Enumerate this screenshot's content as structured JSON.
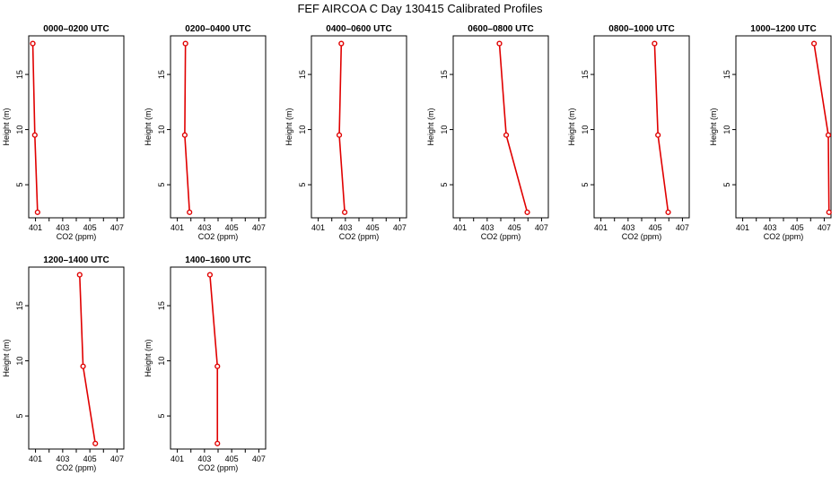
{
  "page": {
    "title": "FEF AIRCOA C  Day 130415  Calibrated Profiles"
  },
  "chart_data": [
    {
      "type": "line",
      "title": "0000–0200 UTC",
      "xlabel": "CO2 (ppm)",
      "ylabel": "Height (m)",
      "xlim": [
        400.5,
        407.5
      ],
      "ylim": [
        2.0,
        18.5
      ],
      "xticks": [
        401,
        403,
        405,
        407
      ],
      "yticks": [
        5,
        10,
        15
      ],
      "x": [
        400.8,
        400.95,
        401.15
      ],
      "y": [
        17.8,
        9.5,
        2.5
      ],
      "color": "#e00000"
    },
    {
      "type": "line",
      "title": "0200–0400 UTC",
      "xlabel": "CO2 (ppm)",
      "ylabel": "Height (m)",
      "xlim": [
        400.5,
        407.5
      ],
      "ylim": [
        2.0,
        18.5
      ],
      "xticks": [
        401,
        403,
        405,
        407
      ],
      "yticks": [
        5,
        10,
        15
      ],
      "x": [
        401.6,
        401.55,
        401.9
      ],
      "y": [
        17.8,
        9.5,
        2.5
      ],
      "color": "#e00000"
    },
    {
      "type": "line",
      "title": "0400–0600 UTC",
      "xlabel": "CO2 (ppm)",
      "ylabel": "Height (m)",
      "xlim": [
        400.5,
        407.5
      ],
      "ylim": [
        2.0,
        18.5
      ],
      "xticks": [
        401,
        403,
        405,
        407
      ],
      "yticks": [
        5,
        10,
        15
      ],
      "x": [
        402.7,
        402.55,
        402.95
      ],
      "y": [
        17.8,
        9.5,
        2.5
      ],
      "color": "#e00000"
    },
    {
      "type": "line",
      "title": "0600–0800 UTC",
      "xlabel": "CO2 (ppm)",
      "ylabel": "Height (m)",
      "xlim": [
        400.5,
        407.5
      ],
      "ylim": [
        2.0,
        18.5
      ],
      "xticks": [
        401,
        403,
        405,
        407
      ],
      "yticks": [
        5,
        10,
        15
      ],
      "x": [
        403.9,
        404.4,
        405.95
      ],
      "y": [
        17.8,
        9.5,
        2.5
      ],
      "color": "#e00000"
    },
    {
      "type": "line",
      "title": "0800–1000 UTC",
      "xlabel": "CO2 (ppm)",
      "ylabel": "Height (m)",
      "xlim": [
        400.5,
        407.5
      ],
      "ylim": [
        2.0,
        18.5
      ],
      "xticks": [
        401,
        403,
        405,
        407
      ],
      "yticks": [
        5,
        10,
        15
      ],
      "x": [
        404.95,
        405.2,
        405.95
      ],
      "y": [
        17.8,
        9.5,
        2.5
      ],
      "color": "#e00000"
    },
    {
      "type": "line",
      "title": "1000–1200 UTC",
      "xlabel": "CO2 (ppm)",
      "ylabel": "Height (m)",
      "xlim": [
        400.5,
        407.5
      ],
      "ylim": [
        2.0,
        18.5
      ],
      "xticks": [
        401,
        403,
        405,
        407
      ],
      "yticks": [
        5,
        10,
        15
      ],
      "x": [
        406.25,
        407.3,
        407.35
      ],
      "y": [
        17.8,
        9.5,
        2.5
      ],
      "color": "#e00000"
    },
    {
      "type": "line",
      "title": "1200–1400 UTC",
      "xlabel": "CO2 (ppm)",
      "ylabel": "Height (m)",
      "xlim": [
        400.5,
        407.5
      ],
      "ylim": [
        2.0,
        18.5
      ],
      "xticks": [
        401,
        403,
        405,
        407
      ],
      "yticks": [
        5,
        10,
        15
      ],
      "x": [
        404.25,
        404.5,
        405.4
      ],
      "y": [
        17.8,
        9.5,
        2.5
      ],
      "color": "#e00000"
    },
    {
      "type": "line",
      "title": "1400–1600 UTC",
      "xlabel": "CO2 (ppm)",
      "ylabel": "Height (m)",
      "xlim": [
        400.5,
        407.5
      ],
      "ylim": [
        2.0,
        18.5
      ],
      "xticks": [
        401,
        403,
        405,
        407
      ],
      "yticks": [
        5,
        10,
        15
      ],
      "x": [
        403.4,
        403.95,
        403.95
      ],
      "y": [
        17.8,
        9.5,
        2.5
      ],
      "color": "#e00000"
    }
  ]
}
